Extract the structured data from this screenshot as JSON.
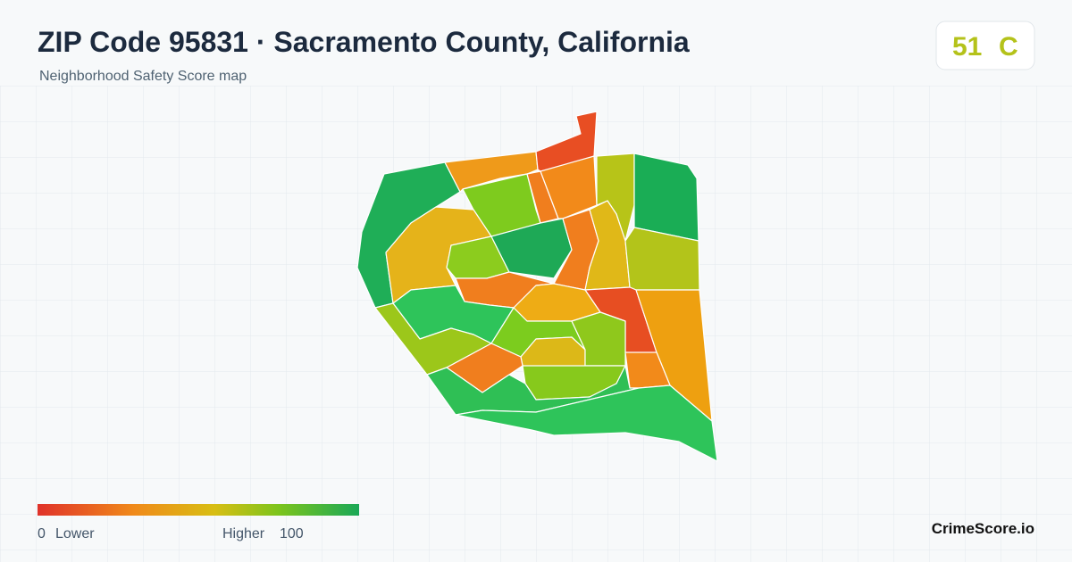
{
  "header": {
    "title": "ZIP Code 95831 · Sacramento County, California",
    "subtitle": "Neighborhood Safety Score map"
  },
  "score": {
    "value": 51,
    "grade": "C"
  },
  "legend": {
    "min": 0,
    "min_label": "Lower",
    "max_label": "Higher",
    "max": 100
  },
  "brand": "CrimeScore.io"
}
